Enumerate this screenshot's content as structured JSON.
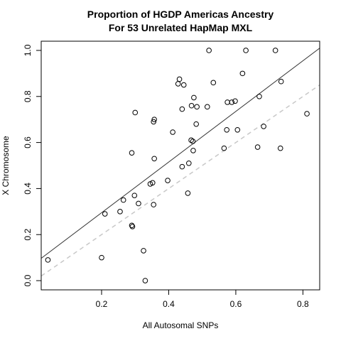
{
  "chart_data": {
    "type": "scatter",
    "title": [
      "Proportion of HGDP Americas Ancestry",
      "For 53 Unrelated HapMap MXL"
    ],
    "xlabel": "All Autosomal SNPs",
    "ylabel": "X Chromosome",
    "xlim": [
      0.02,
      0.85
    ],
    "ylim": [
      -0.04,
      1.04
    ],
    "x_ticks": [
      0.2,
      0.4,
      0.6,
      0.8
    ],
    "x_tick_labels": [
      "0.2",
      "0.4",
      "0.6",
      "0.8"
    ],
    "y_ticks": [
      0.0,
      0.2,
      0.4,
      0.6,
      0.8,
      1.0
    ],
    "y_tick_labels": [
      "0.0",
      "0.2",
      "0.4",
      "0.6",
      "0.8",
      "1.0"
    ],
    "grid": false,
    "legend": "none",
    "points": [
      [
        0.04,
        0.09
      ],
      [
        0.2,
        0.1
      ],
      [
        0.21,
        0.29
      ],
      [
        0.255,
        0.3
      ],
      [
        0.265,
        0.35
      ],
      [
        0.29,
        0.24
      ],
      [
        0.29,
        0.555
      ],
      [
        0.292,
        0.235
      ],
      [
        0.298,
        0.37
      ],
      [
        0.3,
        0.73
      ],
      [
        0.31,
        0.335
      ],
      [
        0.325,
        0.13
      ],
      [
        0.33,
        0.0
      ],
      [
        0.345,
        0.42
      ],
      [
        0.352,
        0.425
      ],
      [
        0.355,
        0.33
      ],
      [
        0.355,
        0.69
      ],
      [
        0.357,
        0.7
      ],
      [
        0.357,
        0.53
      ],
      [
        0.397,
        0.435
      ],
      [
        0.412,
        0.645
      ],
      [
        0.428,
        0.855
      ],
      [
        0.432,
        0.875
      ],
      [
        0.44,
        0.495
      ],
      [
        0.44,
        0.745
      ],
      [
        0.445,
        0.85
      ],
      [
        0.457,
        0.38
      ],
      [
        0.46,
        0.51
      ],
      [
        0.467,
        0.61
      ],
      [
        0.468,
        0.76
      ],
      [
        0.472,
        0.605
      ],
      [
        0.473,
        0.565
      ],
      [
        0.475,
        0.795
      ],
      [
        0.482,
        0.68
      ],
      [
        0.484,
        0.755
      ],
      [
        0.515,
        0.755
      ],
      [
        0.52,
        1.0
      ],
      [
        0.533,
        0.86
      ],
      [
        0.565,
        0.575
      ],
      [
        0.573,
        0.655
      ],
      [
        0.575,
        0.775
      ],
      [
        0.588,
        0.775
      ],
      [
        0.598,
        0.78
      ],
      [
        0.605,
        0.655
      ],
      [
        0.62,
        0.9
      ],
      [
        0.63,
        1.0
      ],
      [
        0.665,
        0.58
      ],
      [
        0.67,
        0.8
      ],
      [
        0.683,
        0.67
      ],
      [
        0.718,
        1.0
      ],
      [
        0.733,
        0.575
      ],
      [
        0.735,
        0.865
      ],
      [
        0.812,
        0.725
      ]
    ],
    "regression_line": {
      "intercept": 0.075,
      "slope": 1.1,
      "style": "solid",
      "color": "#333333"
    },
    "identity_line": {
      "intercept": 0.0,
      "slope": 1.0,
      "style": "dashed",
      "color": "#c8c8c8"
    }
  }
}
